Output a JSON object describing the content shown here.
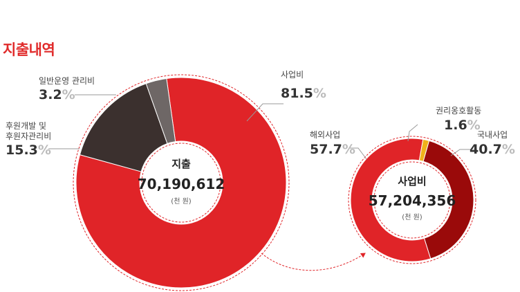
{
  "page_title": "지출내역",
  "colors": {
    "title": "#e02a2a",
    "business": "#e02428",
    "dark": "#3b302e",
    "gray": "#6e6766",
    "domestic": "#9a0a0a",
    "rights": "#f0b21a",
    "leader": "#999999"
  },
  "chart_data": [
    {
      "type": "pie",
      "center_label": "지출",
      "total": "70,190,612",
      "unit": "(천 원)",
      "slices": [
        {
          "label": "사업비",
          "value": 81.5,
          "color": "#e02428"
        },
        {
          "label": "후원개발 및 후원자관리비",
          "value": 15.3,
          "color": "#3b302e"
        },
        {
          "label": "일반운영 관리비",
          "value": 3.2,
          "color": "#6e6766"
        }
      ]
    },
    {
      "type": "pie",
      "center_label": "사업비",
      "total": "57,204,356",
      "unit": "(천 원)",
      "slices": [
        {
          "label": "국내사업",
          "value": 40.7,
          "color": "#9a0a0a"
        },
        {
          "label": "해외사업",
          "value": 57.7,
          "color": "#e02428"
        },
        {
          "label": "권리옹호활동",
          "value": 1.6,
          "color": "#f0b21a"
        }
      ]
    }
  ]
}
